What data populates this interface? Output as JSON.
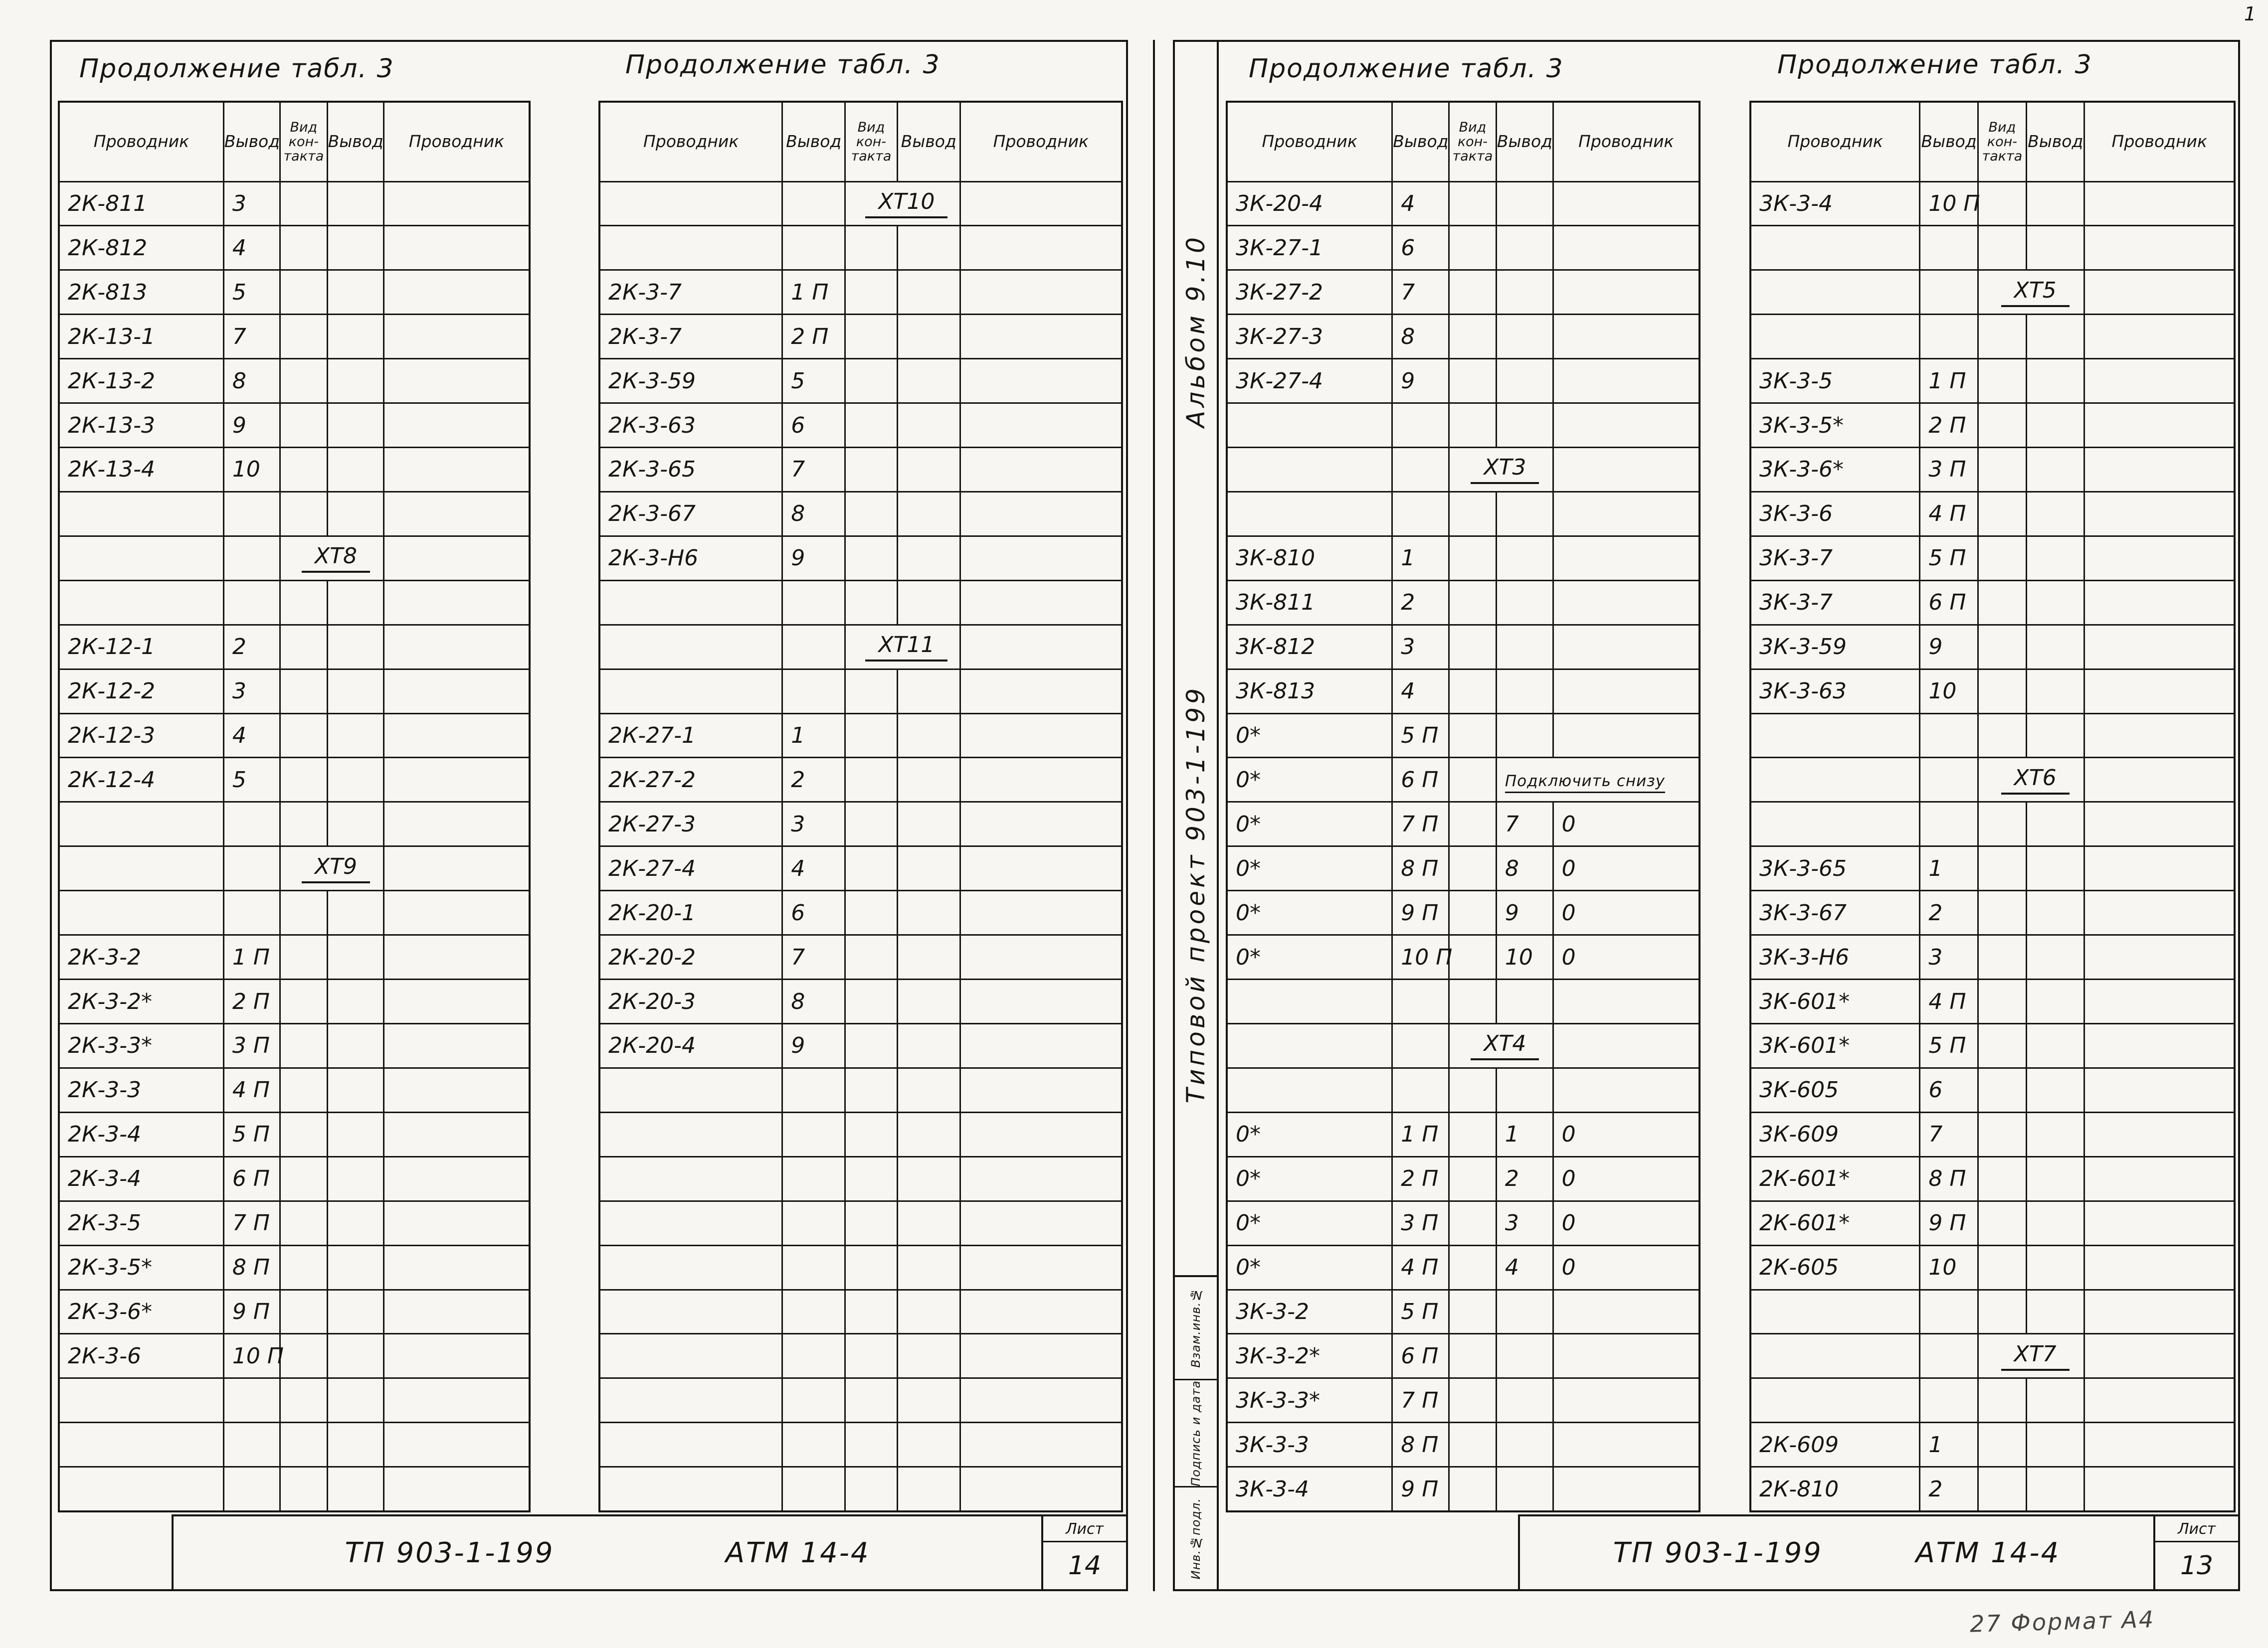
{
  "corner_mark": "1",
  "footer_note": "27 Формат А4",
  "pages": [
    {
      "side": "left",
      "title_block": {
        "doc": "ТП 903-1-199",
        "code": "АТМ 14-4",
        "sheet_label": "Лист",
        "sheet_no": "14"
      },
      "tables": [
        {
          "title": "Продолжение табл. 3",
          "headers": [
            "Проводник",
            "Вывод",
            "Вид\nкон-\nтакта",
            "Вывод",
            "Проводник"
          ],
          "col_widths": [
            "35%",
            "12%",
            "10%",
            "12%",
            "31%"
          ],
          "rows": [
            [
              "2К-811",
              "3"
            ],
            [
              "2К-812",
              "4"
            ],
            [
              "2К-813",
              "5"
            ],
            [
              "2К-13-1",
              "7"
            ],
            [
              "2К-13-2",
              "8"
            ],
            [
              "2К-13-3",
              "9"
            ],
            [
              "2К-13-4",
              "10"
            ],
            [],
            {
              "c": [
                "",
                "",
                "ХТ8"
              ],
              "span": [
                2,
                2
              ]
            },
            [],
            [
              "2К-12-1",
              "2"
            ],
            [
              "2К-12-2",
              "3"
            ],
            [
              "2К-12-3",
              "4"
            ],
            [
              "2К-12-4",
              "5"
            ],
            [],
            {
              "c": [
                "",
                "",
                "ХТ9"
              ],
              "span": [
                2,
                2
              ]
            },
            [],
            [
              "2К-3-2",
              "1 П"
            ],
            [
              "2К-3-2*",
              "2 П"
            ],
            [
              "2К-3-3*",
              "3 П"
            ],
            [
              "2К-3-3",
              "4 П"
            ],
            [
              "2К-3-4",
              "5 П"
            ],
            [
              "2К-3-4",
              "6 П"
            ],
            [
              "2К-3-5",
              "7 П"
            ],
            [
              "2К-3-5*",
              "8 П"
            ],
            [
              "2К-3-6*",
              "9 П"
            ],
            [
              "2К-3-6",
              "10 П"
            ],
            [],
            [],
            []
          ]
        },
        {
          "title": "Продолжение табл. 3",
          "headers": [
            "Проводник",
            "Вывод",
            "Вид\nкон-\nтакта",
            "Вывод",
            "Проводник"
          ],
          "col_widths": [
            "35%",
            "12%",
            "10%",
            "12%",
            "31%"
          ],
          "rows": [
            {
              "c": [
                "",
                "",
                "ХТ10"
              ],
              "span": [
                2,
                2
              ]
            },
            [],
            [
              "2К-3-7",
              "1 П"
            ],
            [
              "2К-3-7",
              "2 П"
            ],
            [
              "2К-3-59",
              "5"
            ],
            [
              "2К-3-63",
              "6"
            ],
            [
              "2К-3-65",
              "7"
            ],
            [
              "2К-3-67",
              "8"
            ],
            [
              "2К-3-Н6",
              "9"
            ],
            [],
            {
              "c": [
                "",
                "",
                "ХТ11"
              ],
              "span": [
                2,
                2
              ]
            },
            [],
            [
              "2К-27-1",
              "1"
            ],
            [
              "2К-27-2",
              "2"
            ],
            [
              "2К-27-3",
              "3"
            ],
            [
              "2К-27-4",
              "4"
            ],
            [
              "2К-20-1",
              "6"
            ],
            [
              "2К-20-2",
              "7"
            ],
            [
              "2К-20-3",
              "8"
            ],
            [
              "2К-20-4",
              "9"
            ],
            [],
            [],
            [],
            [],
            [],
            [],
            [],
            [],
            [],
            []
          ]
        }
      ]
    },
    {
      "side": "right",
      "margin": {
        "album": "Альбом 9.10",
        "project": "Типовой проект 903-1-199",
        "stamp_labels": [
          "Взам.инв.№",
          "Подпись и дата",
          "Инв.№подл."
        ]
      },
      "title_block": {
        "doc": "ТП 903-1-199",
        "code": "АТМ 14-4",
        "sheet_label": "Лист",
        "sheet_no": "13"
      },
      "tables": [
        {
          "title": "Продолжение табл. 3",
          "headers": [
            "Проводник",
            "Вывод",
            "Вид\nкон-\nтакта",
            "Вывод",
            "Проводник"
          ],
          "col_widths": [
            "35%",
            "12%",
            "10%",
            "12%",
            "31%"
          ],
          "rows": [
            [
              "3К-20-4",
              "4"
            ],
            [
              "3К-27-1",
              "6"
            ],
            [
              "3К-27-2",
              "7"
            ],
            [
              "3К-27-3",
              "8"
            ],
            [
              "3К-27-4",
              "9"
            ],
            [],
            {
              "c": [
                "",
                "",
                "ХТ3"
              ],
              "span": [
                2,
                2
              ]
            },
            [],
            [
              "3К-810",
              "1"
            ],
            [
              "3К-811",
              "2"
            ],
            [
              "3К-812",
              "3"
            ],
            [
              "3К-813",
              "4"
            ],
            [
              "0*",
              "5 П"
            ],
            {
              "c": [
                "0*",
                "6 П",
                "",
                "Подключить снизу"
              ],
              "span": [
                3,
                2
              ],
              "note": true
            },
            [
              "0*",
              "7 П",
              "",
              "7",
              "0"
            ],
            [
              "0*",
              "8 П",
              "",
              "8",
              "0"
            ],
            [
              "0*",
              "9 П",
              "",
              "9",
              "0"
            ],
            [
              "0*",
              "10 П",
              "",
              "10",
              "0"
            ],
            [],
            {
              "c": [
                "",
                "",
                "ХТ4"
              ],
              "span": [
                2,
                2
              ]
            },
            [],
            [
              "0*",
              "1 П",
              "",
              "1",
              "0"
            ],
            [
              "0*",
              "2 П",
              "",
              "2",
              "0"
            ],
            [
              "0*",
              "3 П",
              "",
              "3",
              "0"
            ],
            [
              "0*",
              "4 П",
              "",
              "4",
              "0"
            ],
            [
              "3К-3-2",
              "5 П"
            ],
            [
              "3К-3-2*",
              "6 П"
            ],
            [
              "3К-3-3*",
              "7 П"
            ],
            [
              "3К-3-3",
              "8 П"
            ],
            [
              "3К-3-4",
              "9 П"
            ]
          ]
        },
        {
          "title": "Продолжение табл. 3",
          "headers": [
            "Проводник",
            "Вывод",
            "Вид\nкон-\nтакта",
            "Вывод",
            "Проводник"
          ],
          "col_widths": [
            "35%",
            "12%",
            "10%",
            "12%",
            "31%"
          ],
          "rows": [
            [
              "3К-3-4",
              "10 П"
            ],
            [],
            {
              "c": [
                "",
                "",
                "ХТ5"
              ],
              "span": [
                2,
                2
              ]
            },
            [],
            [
              "3К-3-5",
              "1 П"
            ],
            [
              "3К-3-5*",
              "2 П"
            ],
            [
              "3К-3-6*",
              "3 П"
            ],
            [
              "3К-3-6",
              "4 П"
            ],
            [
              "3К-3-7",
              "5 П"
            ],
            [
              "3К-3-7",
              "6 П"
            ],
            [
              "3К-3-59",
              "9"
            ],
            [
              "3К-3-63",
              "10"
            ],
            [],
            {
              "c": [
                "",
                "",
                "ХТ6"
              ],
              "span": [
                2,
                2
              ]
            },
            [],
            [
              "3К-3-65",
              "1"
            ],
            [
              "3К-3-67",
              "2"
            ],
            [
              "3К-3-Н6",
              "3"
            ],
            [
              "3К-601*",
              "4 П"
            ],
            [
              "3К-601*",
              "5 П"
            ],
            [
              "3К-605",
              "6"
            ],
            [
              "3К-609",
              "7"
            ],
            [
              "2К-601*",
              "8 П"
            ],
            [
              "2К-601*",
              "9 П"
            ],
            [
              "2К-605",
              "10"
            ],
            [],
            {
              "c": [
                "",
                "",
                "ХТ7"
              ],
              "span": [
                2,
                2
              ]
            },
            [],
            [
              "2К-609",
              "1"
            ],
            [
              "2К-810",
              "2"
            ]
          ]
        }
      ]
    }
  ]
}
